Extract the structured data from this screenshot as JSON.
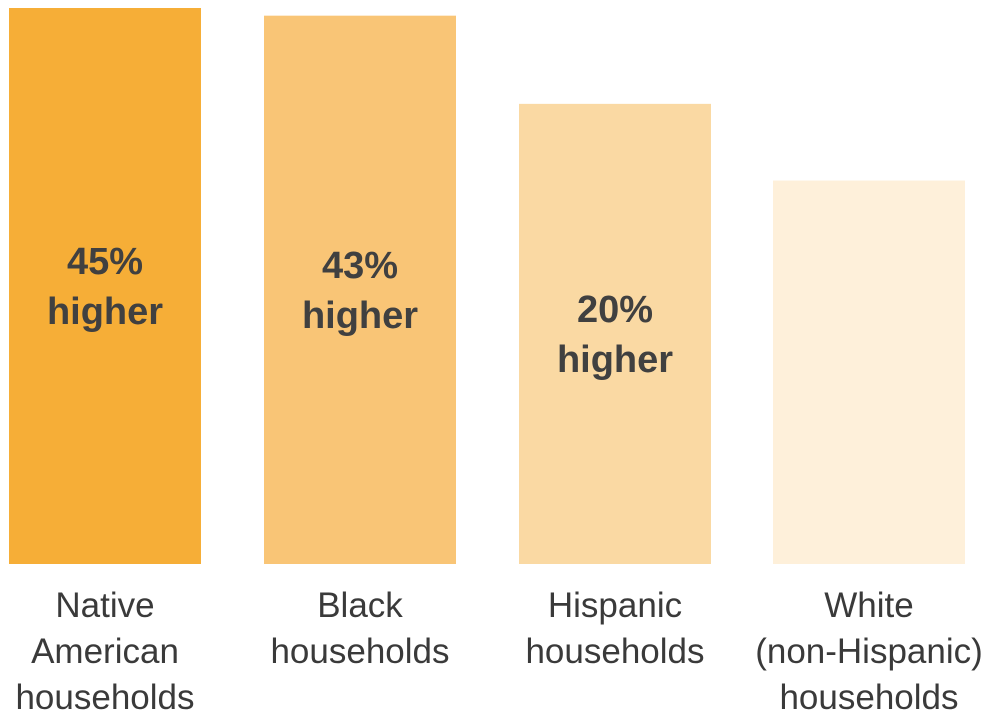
{
  "chart_data": {
    "type": "bar",
    "categories": [
      [
        "Native",
        "American",
        "households"
      ],
      [
        "Black",
        "households"
      ],
      [
        "Hispanic",
        "households"
      ],
      [
        "White",
        "(non-Hispanic)",
        "households"
      ]
    ],
    "values": [
      145,
      143,
      120,
      100
    ],
    "data_labels": [
      [
        "45%",
        "higher"
      ],
      [
        "43%",
        "higher"
      ],
      [
        "20%",
        "higher"
      ],
      []
    ],
    "colors": [
      "#F6AE37",
      "#F9C576",
      "#FAD9A3",
      "#FEF0DA"
    ],
    "title": "",
    "xlabel": "",
    "ylabel": "",
    "ylim": [
      0,
      145
    ],
    "grid": false,
    "legend": "none"
  }
}
